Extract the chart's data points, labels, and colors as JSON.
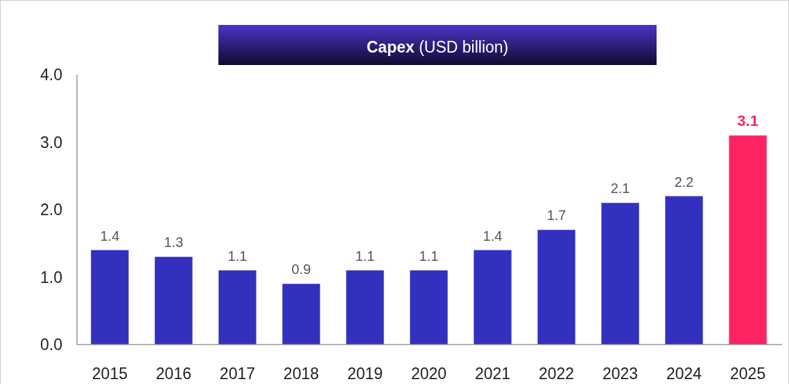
{
  "chart_data": {
    "type": "bar",
    "title": "Capex (USD billion)",
    "categories": [
      "2015",
      "2016",
      "2017",
      "2018",
      "2019",
      "2020",
      "2021",
      "2022",
      "2023",
      "2024",
      "2025"
    ],
    "values": [
      1.4,
      1.3,
      1.1,
      0.9,
      1.1,
      1.1,
      1.4,
      1.7,
      2.1,
      2.2,
      3.1
    ],
    "colors": [
      "#3330bf",
      "#3330bf",
      "#3330bf",
      "#3330bf",
      "#3330bf",
      "#3330bf",
      "#3330bf",
      "#3330bf",
      "#3330bf",
      "#3330bf",
      "#ff2461"
    ],
    "ylim": [
      0,
      4
    ],
    "yticks": [
      {
        "value": 0,
        "label": "0.0"
      },
      {
        "value": 1,
        "label": "1.0"
      },
      {
        "value": 2,
        "label": "2.0"
      },
      {
        "value": 3,
        "label": "3.0"
      },
      {
        "value": 4,
        "label": "4.0"
      }
    ],
    "data_labels": true
  }
}
